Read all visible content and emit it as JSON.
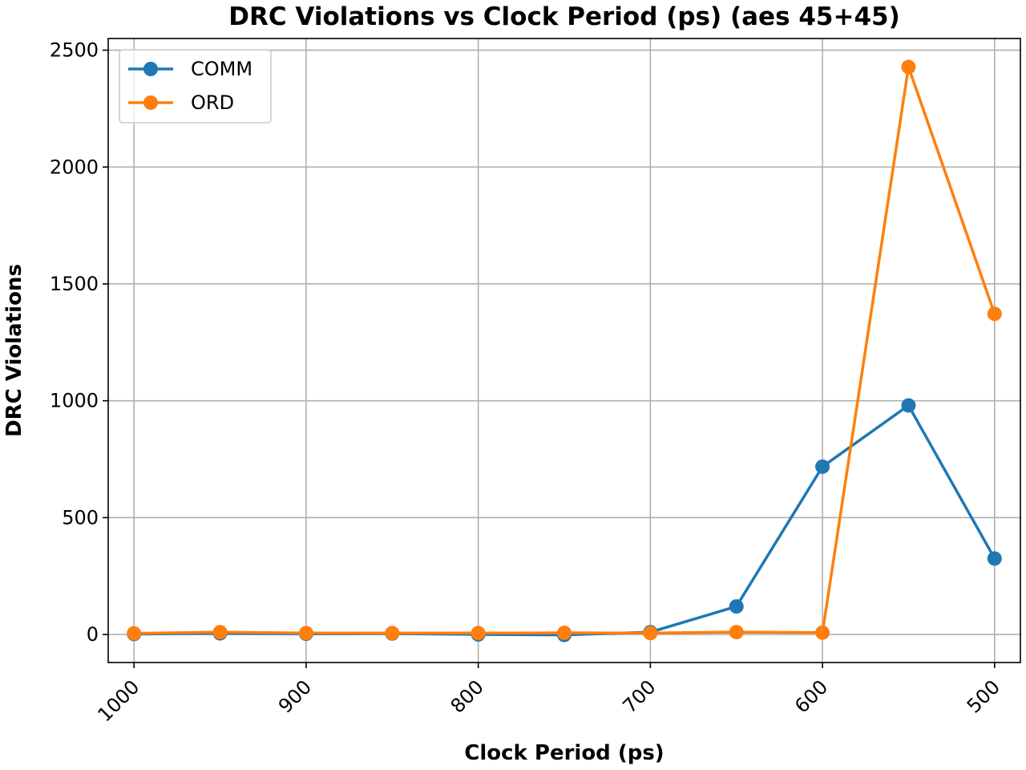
{
  "chart_data": {
    "type": "line",
    "title": "DRC Violations vs Clock Period (ps) (aes 45+45)",
    "xlabel": "Clock Period (ps)",
    "ylabel": "DRC Violations",
    "x": [
      1000,
      950,
      900,
      850,
      800,
      750,
      700,
      650,
      600,
      550,
      500
    ],
    "xlim": [
      1015,
      485
    ],
    "xticks": [
      1000,
      900,
      800,
      700,
      600,
      500
    ],
    "xtick_labels": [
      "1000",
      "900",
      "800",
      "700",
      "600",
      "500"
    ],
    "ylim": [
      -120,
      2550
    ],
    "yticks": [
      0,
      500,
      1000,
      1500,
      2000,
      2500
    ],
    "ytick_labels": [
      "0",
      "500",
      "1000",
      "1500",
      "2000",
      "2500"
    ],
    "grid": true,
    "legend_position": "upper-left",
    "series": [
      {
        "name": "COMM",
        "color": "#1f77b4",
        "values": [
          2,
          5,
          3,
          4,
          0,
          -2,
          10,
          120,
          718,
          980,
          325
        ]
      },
      {
        "name": "ORD",
        "color": "#ff7f0e",
        "values": [
          5,
          10,
          6,
          6,
          6,
          7,
          6,
          10,
          8,
          2428,
          1372
        ]
      }
    ]
  }
}
